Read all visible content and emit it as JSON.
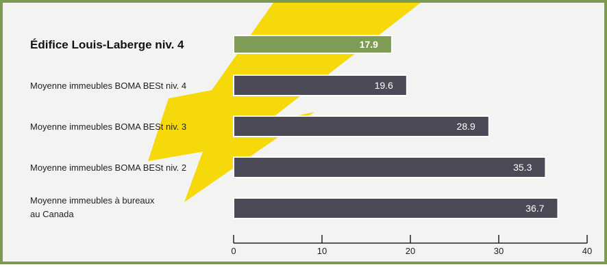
{
  "chart_data": {
    "type": "bar",
    "orientation": "horizontal",
    "title": "",
    "xlabel": "",
    "ylabel": "",
    "categories": [
      [
        "Édifice Louis-Laberge niv. 4"
      ],
      [
        "Moyenne immeubles BOMA BESt niv. 4"
      ],
      [
        "Moyenne immeubles BOMA BESt niv. 3"
      ],
      [
        "Moyenne immeubles BOMA BESt niv. 2"
      ],
      [
        "Moyenne immeubles à bureaux",
        "au Canada"
      ]
    ],
    "values": [
      17.9,
      19.6,
      28.9,
      35.3,
      36.7
    ],
    "value_labels": [
      "17.9",
      "19.6",
      "28.9",
      "35.3",
      "36.7"
    ],
    "highlight_index": 0,
    "xlim": [
      0,
      40
    ],
    "ticks": [
      0,
      10,
      20,
      30,
      40
    ],
    "grid": false,
    "colors": {
      "highlight_bar": "#7e9c55",
      "bar": "#4b4a56",
      "frame": "#7d9a52",
      "background": "#f3f3f1",
      "accent_bolt": "#f5d90a"
    }
  }
}
